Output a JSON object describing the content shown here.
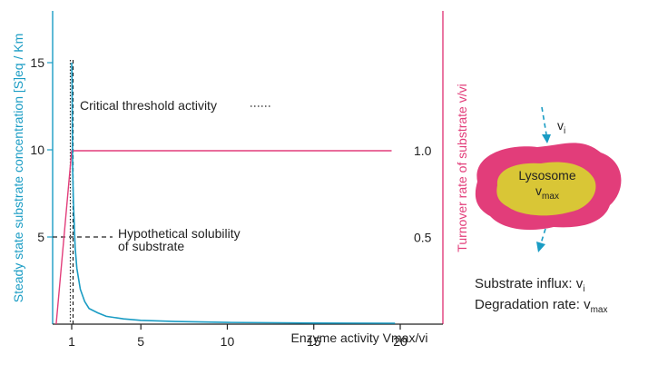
{
  "colors": {
    "enzyme_curve": "#1a9cc4",
    "turnover_curve": "#e23d7a",
    "left_axis": "#1a9cc4",
    "right_axis": "#e23d7a",
    "lysosome_outer": "#e23d7a",
    "lysosome_inner": "#d9c636",
    "arrow": "#1a9cc4",
    "text": "#222222"
  },
  "chart_data": {
    "type": "line",
    "xlabel": "Enzyme activity Vmax/vi",
    "ylabel_left": "Steady state substrate concentration [S]eq / Km",
    "ylabel_right": "Turnover rate of substrate v/vi",
    "xlim": [
      0.1,
      20
    ],
    "ylim_left": [
      0,
      15
    ],
    "ylim_right": [
      0,
      1.5
    ],
    "x_ticks": [
      1,
      5,
      10,
      15,
      20
    ],
    "y_ticks_left": [
      5,
      10,
      15
    ],
    "y_ticks_right": [
      0.5,
      1.0
    ],
    "y_tick_labels_right": [
      "0.5",
      "1.0"
    ],
    "series": [
      {
        "name": "Steady state substrate concentration",
        "axis": "left",
        "x": [
          1.0,
          1.02,
          1.05,
          1.1,
          1.2,
          1.3,
          1.5,
          1.75,
          2,
          2.5,
          3,
          4,
          5,
          7,
          10,
          15,
          19.7
        ],
        "y": [
          15.0,
          14.0,
          9.0,
          7.0,
          4.4,
          3.2,
          2.0,
          1.3,
          0.9,
          0.65,
          0.45,
          0.3,
          0.22,
          0.15,
          0.1,
          0.06,
          0.05
        ]
      },
      {
        "name": "Turnover rate of substrate",
        "axis": "right",
        "x": [
          0.1,
          1.0,
          19.5
        ],
        "y": [
          0.0,
          1.0,
          1.0
        ]
      }
    ],
    "annotations": {
      "critical_threshold": {
        "x": 1.0,
        "label": "Critical threshold activity"
      },
      "solubility": {
        "y": 5,
        "label_line1": "Hypothetical solubility",
        "label_line2": "of substrate"
      }
    }
  },
  "diagram": {
    "organelle_label": "Lysosome",
    "vmax_main": "v",
    "vmax_sub": "max",
    "vi_main": "v",
    "vi_sub": "i",
    "legend": {
      "influx_prefix": "Substrate influx: v",
      "influx_sub": "i",
      "degradation_prefix": "Degradation rate: v",
      "degradation_sub": "max"
    }
  }
}
